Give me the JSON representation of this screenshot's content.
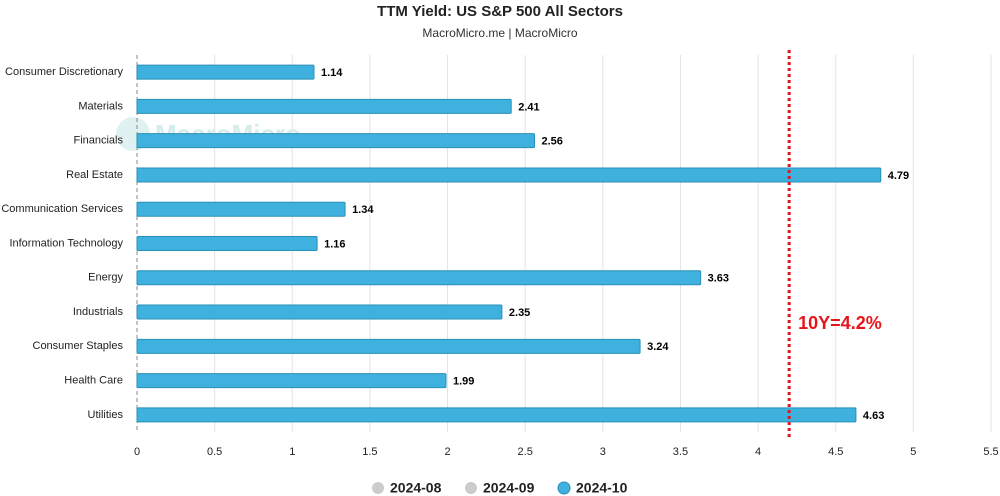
{
  "chart_data": {
    "type": "bar",
    "orientation": "horizontal",
    "title": "TTM Yield: US S&P 500 All Sectors",
    "subtitle": "MacroMicro.me | MacroMicro",
    "watermark": "MacroMicro",
    "categories": [
      "Consumer Discretionary",
      "Materials",
      "Financials",
      "Real Estate",
      "Communication Services",
      "Information Technology",
      "Energy",
      "Industrials",
      "Consumer Staples",
      "Health Care",
      "Utilities"
    ],
    "series": [
      {
        "name": "2024-08",
        "color": "#cccccc",
        "visible": false,
        "values": [
          null,
          null,
          null,
          null,
          null,
          null,
          null,
          null,
          null,
          null,
          null
        ]
      },
      {
        "name": "2024-09",
        "color": "#cccccc",
        "visible": false,
        "values": [
          null,
          null,
          null,
          null,
          null,
          null,
          null,
          null,
          null,
          null,
          null
        ]
      },
      {
        "name": "2024-10",
        "color": "#3fb1de",
        "visible": true,
        "values": [
          1.14,
          2.41,
          2.56,
          4.79,
          1.34,
          1.16,
          3.63,
          2.35,
          3.24,
          1.99,
          4.63
        ]
      }
    ],
    "xlim": [
      0,
      5.5
    ],
    "xticks": [
      0,
      0.5,
      1,
      1.5,
      2,
      2.5,
      3,
      3.5,
      4,
      4.5,
      5,
      5.5
    ],
    "grid": true,
    "reference_line": {
      "value": 4.2,
      "label": "10Y=4.2%",
      "color": "#e8141a"
    },
    "legend": "bottom"
  }
}
